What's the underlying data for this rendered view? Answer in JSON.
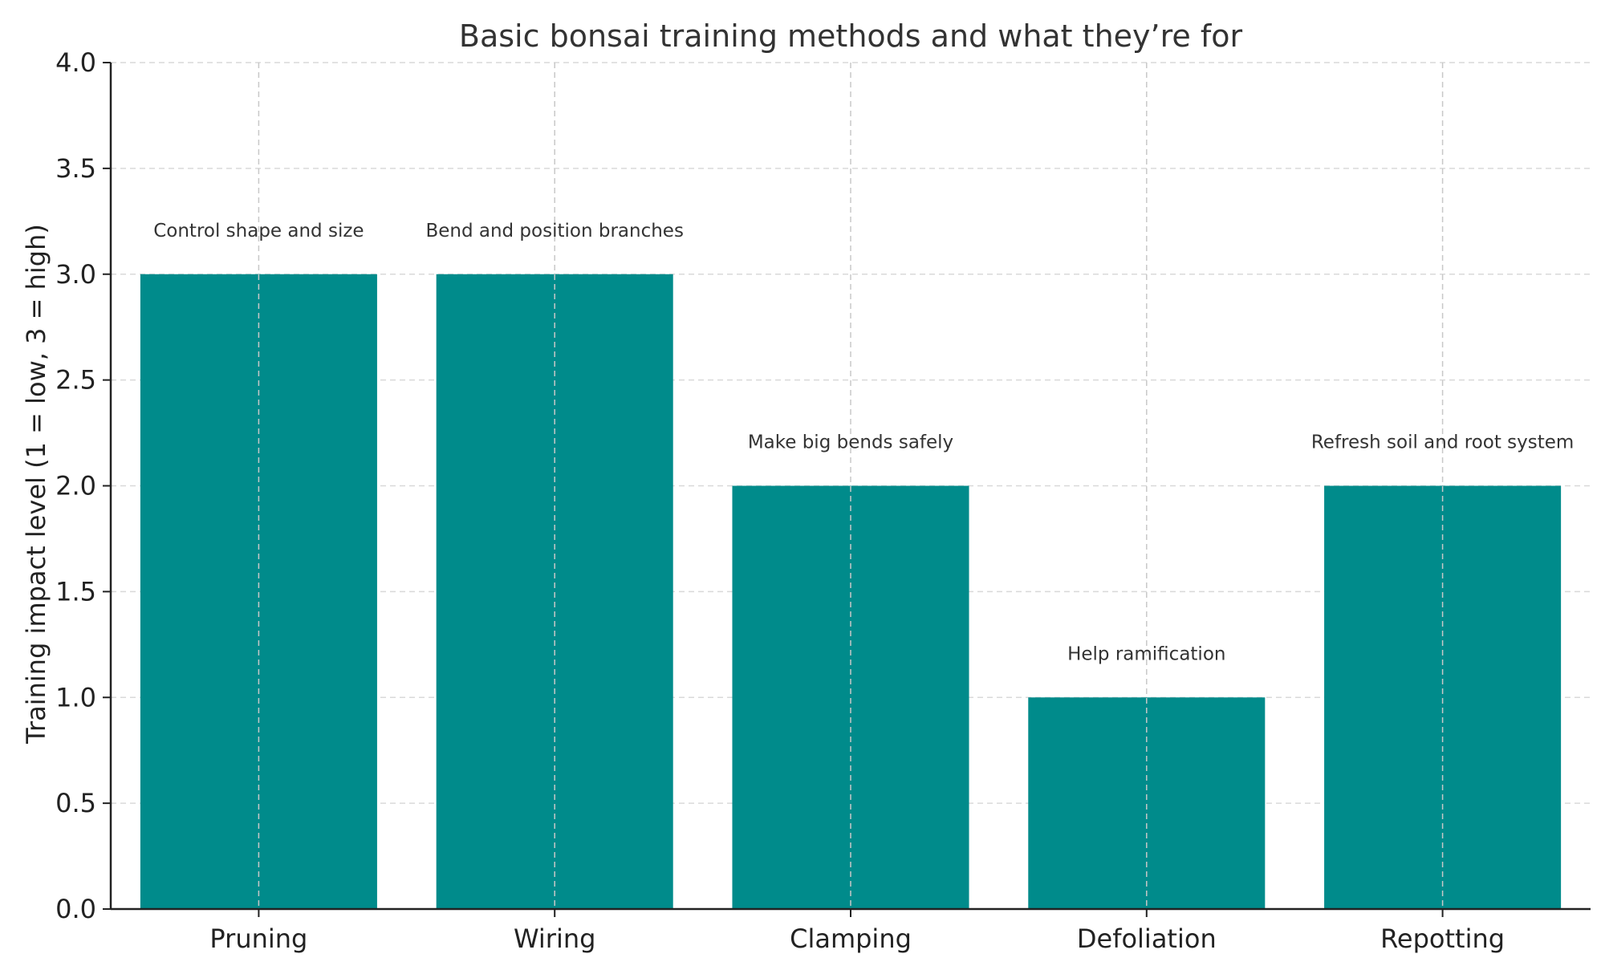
{
  "chart_data": {
    "type": "bar",
    "title": "Basic bonsai training methods and what they’re for",
    "xlabel": "",
    "ylabel": "Training impact level (1 = low, 3 = high)",
    "categories": [
      "Pruning",
      "Wiring",
      "Clamping",
      "Defoliation",
      "Repotting"
    ],
    "values": [
      3,
      3,
      2,
      1,
      2
    ],
    "annotations": [
      "Control shape and size",
      "Bend and position branches",
      "Make big bends safely",
      "Help ramification",
      "Refresh soil and root system"
    ],
    "ylim": [
      0,
      4
    ],
    "yticks": [
      "0.0",
      "0.5",
      "1.0",
      "1.5",
      "2.0",
      "2.5",
      "3.0",
      "3.5",
      "4.0"
    ],
    "grid": true,
    "bar_color": "#008b8b",
    "text_color": "#333333",
    "grid_color": "#d9d9d9"
  }
}
